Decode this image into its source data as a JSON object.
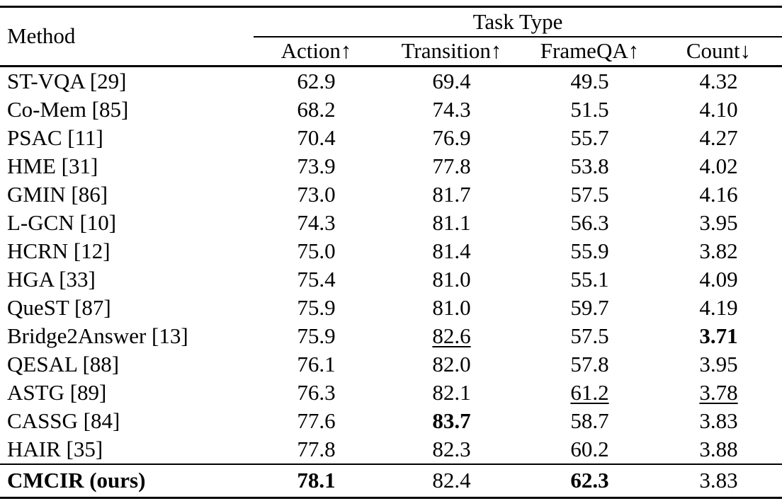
{
  "table": {
    "method_header": "Method",
    "group_header": "Task Type",
    "columns": [
      "Action↑",
      "Transition↑",
      "FrameQA↑",
      "Count↓"
    ],
    "rows": [
      {
        "method": "ST-VQA [29]",
        "method_bold": false,
        "is_ours": false,
        "values": [
          {
            "text": "62.9",
            "emphasis": "none"
          },
          {
            "text": "69.4",
            "emphasis": "none"
          },
          {
            "text": "49.5",
            "emphasis": "none"
          },
          {
            "text": "4.32",
            "emphasis": "none"
          }
        ]
      },
      {
        "method": "Co-Mem [85]",
        "method_bold": false,
        "is_ours": false,
        "values": [
          {
            "text": "68.2",
            "emphasis": "none"
          },
          {
            "text": "74.3",
            "emphasis": "none"
          },
          {
            "text": "51.5",
            "emphasis": "none"
          },
          {
            "text": "4.10",
            "emphasis": "none"
          }
        ]
      },
      {
        "method": "PSAC [11]",
        "method_bold": false,
        "is_ours": false,
        "values": [
          {
            "text": "70.4",
            "emphasis": "none"
          },
          {
            "text": "76.9",
            "emphasis": "none"
          },
          {
            "text": "55.7",
            "emphasis": "none"
          },
          {
            "text": "4.27",
            "emphasis": "none"
          }
        ]
      },
      {
        "method": "HME [31]",
        "method_bold": false,
        "is_ours": false,
        "values": [
          {
            "text": "73.9",
            "emphasis": "none"
          },
          {
            "text": "77.8",
            "emphasis": "none"
          },
          {
            "text": "53.8",
            "emphasis": "none"
          },
          {
            "text": "4.02",
            "emphasis": "none"
          }
        ]
      },
      {
        "method": "GMIN [86]",
        "method_bold": false,
        "is_ours": false,
        "values": [
          {
            "text": "73.0",
            "emphasis": "none"
          },
          {
            "text": "81.7",
            "emphasis": "none"
          },
          {
            "text": "57.5",
            "emphasis": "none"
          },
          {
            "text": "4.16",
            "emphasis": "none"
          }
        ]
      },
      {
        "method": "L-GCN [10]",
        "method_bold": false,
        "is_ours": false,
        "values": [
          {
            "text": "74.3",
            "emphasis": "none"
          },
          {
            "text": "81.1",
            "emphasis": "none"
          },
          {
            "text": "56.3",
            "emphasis": "none"
          },
          {
            "text": "3.95",
            "emphasis": "none"
          }
        ]
      },
      {
        "method": "HCRN [12]",
        "method_bold": false,
        "is_ours": false,
        "values": [
          {
            "text": "75.0",
            "emphasis": "none"
          },
          {
            "text": "81.4",
            "emphasis": "none"
          },
          {
            "text": "55.9",
            "emphasis": "none"
          },
          {
            "text": "3.82",
            "emphasis": "none"
          }
        ]
      },
      {
        "method": "HGA [33]",
        "method_bold": false,
        "is_ours": false,
        "values": [
          {
            "text": "75.4",
            "emphasis": "none"
          },
          {
            "text": "81.0",
            "emphasis": "none"
          },
          {
            "text": "55.1",
            "emphasis": "none"
          },
          {
            "text": "4.09",
            "emphasis": "none"
          }
        ]
      },
      {
        "method": "QueST [87]",
        "method_bold": false,
        "is_ours": false,
        "values": [
          {
            "text": "75.9",
            "emphasis": "none"
          },
          {
            "text": "81.0",
            "emphasis": "none"
          },
          {
            "text": "59.7",
            "emphasis": "none"
          },
          {
            "text": "4.19",
            "emphasis": "none"
          }
        ]
      },
      {
        "method": "Bridge2Answer [13]",
        "method_bold": false,
        "is_ours": false,
        "values": [
          {
            "text": "75.9",
            "emphasis": "none"
          },
          {
            "text": "82.6",
            "emphasis": "underline"
          },
          {
            "text": "57.5",
            "emphasis": "none"
          },
          {
            "text": "3.71",
            "emphasis": "bold"
          }
        ]
      },
      {
        "method": "QESAL [88]",
        "method_bold": false,
        "is_ours": false,
        "values": [
          {
            "text": "76.1",
            "emphasis": "none"
          },
          {
            "text": "82.0",
            "emphasis": "none"
          },
          {
            "text": "57.8",
            "emphasis": "none"
          },
          {
            "text": "3.95",
            "emphasis": "none"
          }
        ]
      },
      {
        "method": "ASTG [89]",
        "method_bold": false,
        "is_ours": false,
        "values": [
          {
            "text": "76.3",
            "emphasis": "none"
          },
          {
            "text": "82.1",
            "emphasis": "none"
          },
          {
            "text": "61.2",
            "emphasis": "underline"
          },
          {
            "text": "3.78",
            "emphasis": "underline"
          }
        ]
      },
      {
        "method": "CASSG [84]",
        "method_bold": false,
        "is_ours": false,
        "values": [
          {
            "text": "77.6",
            "emphasis": "none"
          },
          {
            "text": "83.7",
            "emphasis": "bold"
          },
          {
            "text": "58.7",
            "emphasis": "none"
          },
          {
            "text": "3.83",
            "emphasis": "none"
          }
        ]
      },
      {
        "method": "HAIR [35]",
        "method_bold": false,
        "is_ours": false,
        "values": [
          {
            "text": "77.8",
            "emphasis": "none"
          },
          {
            "text": "82.3",
            "emphasis": "none"
          },
          {
            "text": "60.2",
            "emphasis": "none"
          },
          {
            "text": "3.88",
            "emphasis": "none"
          }
        ]
      },
      {
        "method": "CMCIR (ours)",
        "method_bold": true,
        "is_ours": true,
        "values": [
          {
            "text": "78.1",
            "emphasis": "bold"
          },
          {
            "text": "82.4",
            "emphasis": "none"
          },
          {
            "text": "62.3",
            "emphasis": "bold"
          },
          {
            "text": "3.83",
            "emphasis": "none"
          }
        ]
      }
    ]
  }
}
